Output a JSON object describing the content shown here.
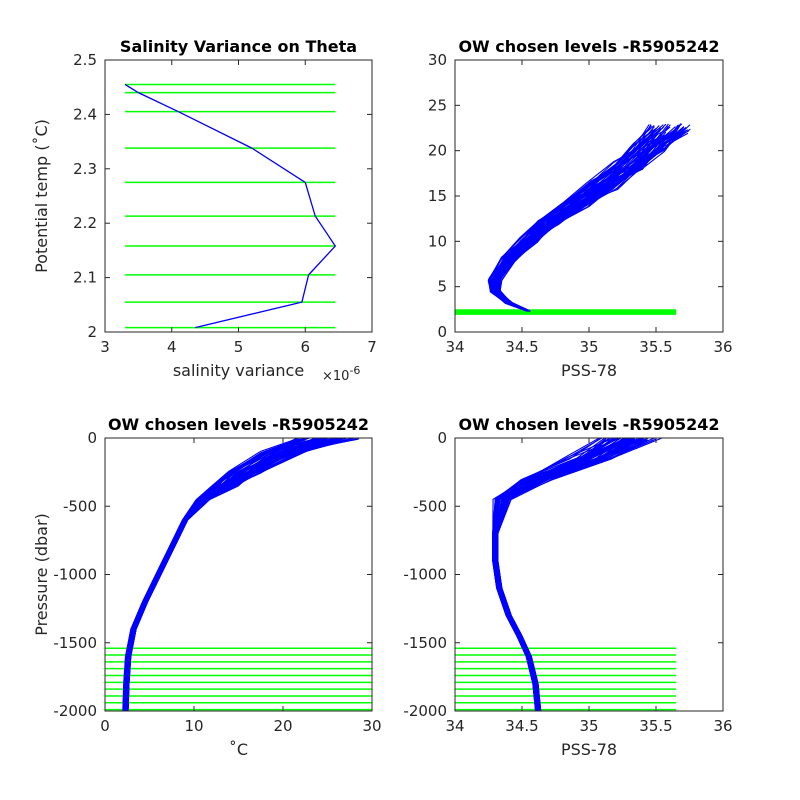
{
  "colors": {
    "profile": "#0000ff",
    "levels": "#00ff00",
    "axes": "#262626"
  },
  "chart_data": [
    {
      "type": "line",
      "title": "Salinity Variance on Theta",
      "xlabel": "salinity variance",
      "x_exponent": "×10",
      "x_exponent_power": "-6",
      "ylabel": "Potential temp (˚C)",
      "xlim": [
        3,
        7
      ],
      "ylim": [
        2,
        2.5
      ],
      "xticks": [
        3,
        4,
        5,
        6,
        7
      ],
      "xtick_labels": [
        "3",
        "4",
        "5",
        "6",
        "7"
      ],
      "yticks": [
        2,
        2.1,
        2.2,
        2.3,
        2.4,
        2.5
      ],
      "ytick_labels": [
        "2",
        "2.1",
        "2.2",
        "2.3",
        "2.4",
        "2.5"
      ],
      "series": [
        {
          "color": "#0000ff",
          "x": [
            4.35,
            5.95,
            6.05,
            6.45,
            6.15,
            6.0,
            5.2,
            4.1,
            3.5,
            3.3
          ],
          "y": [
            2.008,
            2.055,
            2.105,
            2.158,
            2.213,
            2.275,
            2.338,
            2.405,
            2.44,
            2.455
          ]
        }
      ],
      "hlines": {
        "color": "#00ff00",
        "x_range": [
          3.3,
          6.45
        ],
        "y": [
          2.008,
          2.055,
          2.105,
          2.158,
          2.213,
          2.275,
          2.338,
          2.405,
          2.44,
          2.455
        ]
      }
    },
    {
      "type": "line",
      "title": "OW chosen levels -R5905242",
      "xlabel": "PSS-78",
      "ylabel": "",
      "xlim": [
        34,
        36
      ],
      "ylim": [
        0,
        30
      ],
      "xticks": [
        34,
        34.5,
        35,
        35.5,
        36
      ],
      "xtick_labels": [
        "34",
        "34.5",
        "35",
        "35.5",
        "36"
      ],
      "yticks": [
        0,
        5,
        10,
        15,
        20,
        25,
        30
      ],
      "ytick_labels": [
        "0",
        "5",
        "10",
        "15",
        "20",
        "25",
        "30"
      ],
      "series": [
        {
          "color": "#0000ff",
          "x": [
            34.55,
            34.4,
            34.3,
            34.3,
            34.4,
            34.55,
            34.7,
            34.9,
            35.1,
            35.3,
            35.45,
            35.6
          ],
          "y": [
            2.3,
            3.2,
            4.5,
            5.8,
            8.0,
            10.2,
            12.2,
            14.2,
            16.2,
            18.3,
            20.5,
            22.3
          ]
        }
      ],
      "hlines": {
        "color": "#00ff00",
        "x_range": [
          34.0,
          35.65
        ],
        "y": [
          2.0,
          2.1,
          2.2,
          2.3,
          2.4
        ]
      }
    },
    {
      "type": "line",
      "title": "OW chosen levels -R5905242",
      "xlabel": "˚C",
      "ylabel": "Pressure (dbar)",
      "xlim": [
        0,
        30
      ],
      "ylim": [
        -2000,
        0
      ],
      "xticks": [
        0,
        10,
        20,
        30
      ],
      "xtick_labels": [
        "0",
        "10",
        "20",
        "30"
      ],
      "yticks": [
        -2000,
        -1500,
        -1000,
        -500,
        0
      ],
      "ytick_labels": [
        "-2000",
        "-1500",
        "-1000",
        "-500",
        "0"
      ],
      "series": [
        {
          "color": "#0000ff",
          "x": [
            2.3,
            2.4,
            2.6,
            3.2,
            4.5,
            6.0,
            7.5,
            9.0,
            11.0,
            13.5,
            15.5,
            20.0,
            25.0
          ],
          "y": [
            -2000,
            -1800,
            -1600,
            -1400,
            -1200,
            -1000,
            -800,
            -600,
            -450,
            -350,
            -250,
            -100,
            0
          ]
        }
      ],
      "hlines": {
        "color": "#00ff00",
        "x_range": [
          0,
          30
        ],
        "y": [
          -1540,
          -1590,
          -1640,
          -1690,
          -1740,
          -1790,
          -1840,
          -1890,
          -1940,
          -1990
        ]
      }
    },
    {
      "type": "line",
      "title": "OW chosen levels -R5905242",
      "xlabel": "PSS-78",
      "ylabel": "",
      "xlim": [
        34,
        36
      ],
      "ylim": [
        -2000,
        0
      ],
      "xticks": [
        34,
        34.5,
        35,
        35.5,
        36
      ],
      "xtick_labels": [
        "34",
        "34.5",
        "35",
        "35.5",
        "36"
      ],
      "yticks": [
        -2000,
        -1500,
        -1000,
        -500,
        0
      ],
      "ytick_labels": [
        "-2000",
        "-1500",
        "-1000",
        "-500",
        "0"
      ],
      "series": [
        {
          "color": "#0000ff",
          "x": [
            34.62,
            34.6,
            34.55,
            34.48,
            34.4,
            34.33,
            34.3,
            34.3,
            34.35,
            34.6,
            35.0,
            35.3
          ],
          "y": [
            -2000,
            -1800,
            -1600,
            -1450,
            -1300,
            -1100,
            -900,
            -700,
            -450,
            -300,
            -150,
            0
          ]
        }
      ],
      "hlines": {
        "color": "#00ff00",
        "x_range": [
          34.0,
          35.65
        ],
        "y": [
          -1540,
          -1590,
          -1640,
          -1690,
          -1740,
          -1790,
          -1840,
          -1890,
          -1940,
          -1990
        ]
      }
    }
  ]
}
